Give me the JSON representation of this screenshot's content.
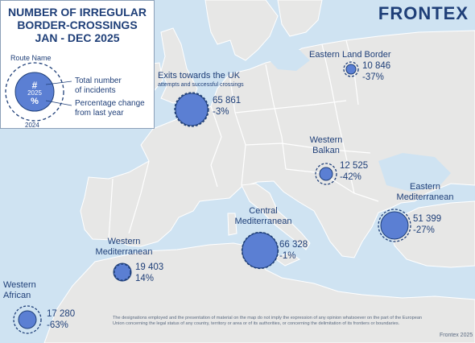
{
  "legend": {
    "title_lines": [
      "NUMBER OF IRREGULAR",
      "BORDER-CROSSINGS",
      "JAN - DEC 2025"
    ],
    "route_name": "Route Name",
    "symbol_hash": "#",
    "symbol_year": "2025",
    "symbol_pct": "%",
    "prior_year": "2024",
    "total_line1": "Total number",
    "total_line2": "of incidents",
    "pct_line1": "Percentage change",
    "pct_line2": "from last year"
  },
  "brand": {
    "name": "FRONTEX"
  },
  "colors": {
    "sea": "#cfe3f2",
    "land": "#e7e7e6",
    "border": "#ffffff",
    "bubble": "#5b7fd3",
    "bubble_stroke": "#1f3f78",
    "text": "#1f3f78"
  },
  "routes": {
    "eastern_land": {
      "name": "Eastern Land Border",
      "total": "10 846",
      "change": "-37%"
    },
    "uk": {
      "name": "Exits towards the UK",
      "subtitle": "attempts and successful crossings",
      "total": "65 861",
      "change": "-3%"
    },
    "western_balkan": {
      "name_line1": "Western",
      "name_line2": "Balkan",
      "total": "12 525",
      "change": "-42%"
    },
    "eastern_med": {
      "name_line1": "Eastern",
      "name_line2": "Mediterranean",
      "total": "51 399",
      "change": "-27%"
    },
    "central_med": {
      "name_line1": "Central",
      "name_line2": "Mediterranean",
      "total": "66 328",
      "change": "-1%"
    },
    "western_med": {
      "name_line1": "Western",
      "name_line2": "Mediterranean",
      "total": "19 403",
      "change": "14%"
    },
    "western_african": {
      "name_line1": "Western",
      "name_line2": "African",
      "total": "17 280",
      "change": "-63%"
    }
  },
  "disclaimer": "The designations employed and the presentation of material on the map do not imply the expression of any opinion whatsoever on the part of the European Union concerning the legal status of any country, territory or area or of its authorities, or concerning the delimitation of its frontiers or boundaries.",
  "credit": "Frontex 2025"
}
